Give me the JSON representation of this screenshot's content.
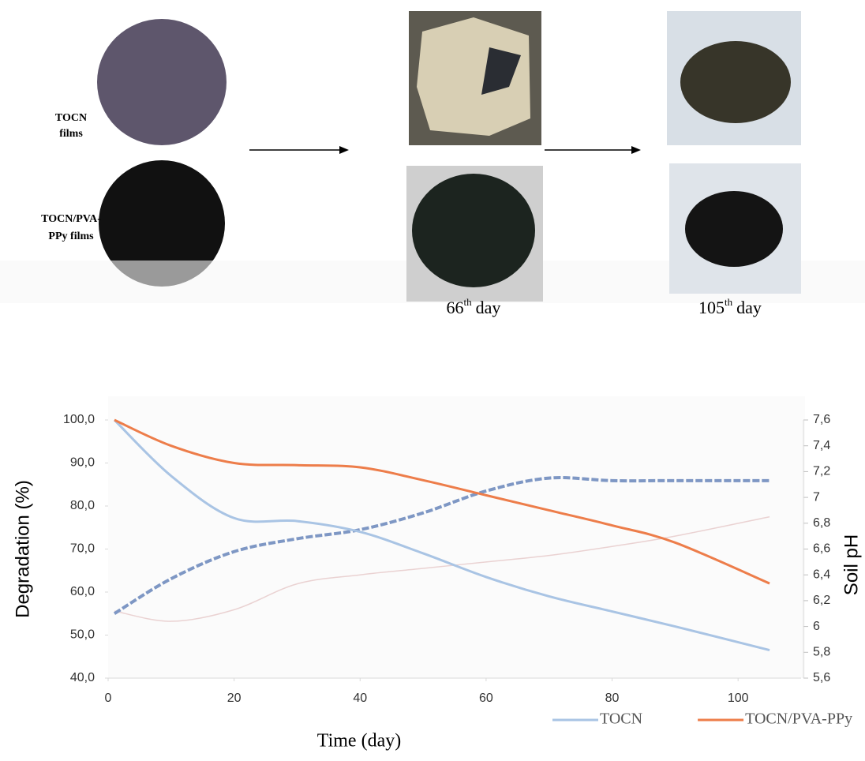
{
  "figure": {
    "sample_labels": [
      [
        "TOCN",
        "films"
      ],
      [
        "TOCN/PVA-",
        "PPy films"
      ]
    ],
    "day_labels": [
      {
        "number": "66",
        "suffix": "th",
        "unit": "day"
      },
      {
        "number": "105",
        "suffix": "th",
        "unit": "day"
      }
    ]
  },
  "chart_data": {
    "type": "line",
    "xlabel": "Time (day)",
    "ylabel": "Degradation (%)",
    "y2label": "Soil pH",
    "x": [
      1,
      10,
      20,
      30,
      40,
      50,
      60,
      70,
      80,
      90,
      105
    ],
    "xlim": [
      0,
      110
    ],
    "xticks": [
      0,
      20,
      40,
      60,
      80,
      100
    ],
    "ylim": [
      40,
      100
    ],
    "yticks": [
      {
        "value": 40,
        "label": "40,0"
      },
      {
        "value": 50,
        "label": "50,0"
      },
      {
        "value": 60,
        "label": "60,0"
      },
      {
        "value": 70,
        "label": "70,0"
      },
      {
        "value": 80,
        "label": "80,0"
      },
      {
        "value": 90,
        "label": "90,0"
      },
      {
        "value": 100,
        "label": "100,0"
      }
    ],
    "y2lim": [
      5.6,
      7.6
    ],
    "y2ticks": [
      {
        "value": 5.6,
        "label": "5,6"
      },
      {
        "value": 5.8,
        "label": "5,8"
      },
      6,
      {
        "value": 6.2,
        "label": "6,2"
      },
      {
        "value": 6.4,
        "label": "6,4"
      },
      {
        "value": 6.6,
        "label": "6,6"
      },
      {
        "value": 6.8,
        "label": "6,8"
      },
      7,
      {
        "value": 7.2,
        "label": "7,2"
      },
      {
        "value": 7.4,
        "label": "7,4"
      },
      {
        "value": 7.6,
        "label": "7,6"
      }
    ],
    "grid": false,
    "legend": "bottom-right",
    "series": [
      {
        "name": "TOCN",
        "color": "#a9c4e4",
        "values": [
          100,
          87,
          77.2,
          76.5,
          74,
          69,
          63.5,
          59,
          55.5,
          52,
          46.5
        ]
      },
      {
        "name": "TOCN/PVA-PPy",
        "color": "#ed7d4a",
        "values": [
          100,
          94,
          90,
          89.5,
          89,
          86,
          82.5,
          79,
          75.5,
          71.5,
          62
        ]
      },
      {
        "color": "#7e97c4",
        "dashed": true,
        "axis": "y2",
        "values": [
          6.1,
          6.37,
          6.58,
          6.68,
          6.75,
          6.88,
          7.05,
          7.15,
          7.13,
          7.13,
          7.13
        ]
      },
      {
        "color": "#ead2d2",
        "axis": "y2",
        "values": [
          6.12,
          6.04,
          6.13,
          6.33,
          6.4,
          6.45,
          6.5,
          6.55,
          6.62,
          6.7,
          6.85
        ]
      }
    ]
  }
}
